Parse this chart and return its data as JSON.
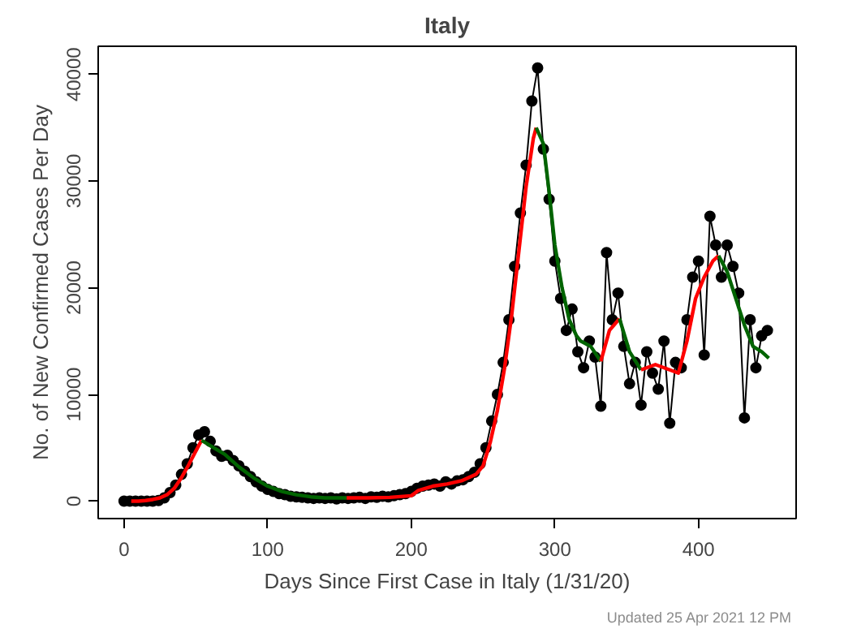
{
  "chart_data": {
    "type": "line",
    "title": "Italy",
    "xlabel": "Days Since First Case in Italy (1/31/20)",
    "ylabel": "No. of New Confirmed Cases Per Day",
    "annotations": [
      "Updated  25 Apr 2021 12 PM"
    ],
    "xlim": [
      -18,
      468
    ],
    "ylim": [
      -1640,
      42640
    ],
    "xticks": [
      0,
      100,
      200,
      300,
      400
    ],
    "yticks": [
      0,
      10000,
      20000,
      30000,
      40000
    ],
    "grid": false,
    "series": [
      {
        "color": "#000000",
        "marker": "circle",
        "line_style": "solid",
        "x": [
          0,
          4,
          8,
          12,
          16,
          20,
          24,
          28,
          32,
          36,
          40,
          44,
          48,
          52,
          56,
          60,
          64,
          68,
          72,
          76,
          80,
          84,
          88,
          92,
          96,
          100,
          104,
          108,
          112,
          116,
          120,
          124,
          128,
          132,
          136,
          140,
          144,
          148,
          152,
          156,
          160,
          164,
          168,
          172,
          176,
          180,
          184,
          188,
          192,
          196,
          200,
          204,
          208,
          212,
          216,
          220,
          224,
          228,
          232,
          236,
          240,
          244,
          248,
          252,
          256,
          260,
          264,
          268,
          272,
          276,
          280,
          284,
          288,
          292,
          296,
          300,
          304,
          308,
          312,
          316,
          320,
          324,
          328,
          332,
          336,
          340,
          344,
          348,
          352,
          356,
          360,
          364,
          368,
          372,
          376,
          380,
          384,
          388,
          392,
          396,
          400,
          404,
          408,
          412,
          416,
          420,
          424,
          428,
          432,
          436,
          440,
          444,
          448
        ],
        "values": [
          0,
          0,
          0,
          0,
          0,
          0,
          50,
          300,
          800,
          1500,
          2500,
          3500,
          5000,
          6200,
          6500,
          5600,
          4700,
          4200,
          4300,
          3800,
          3300,
          2800,
          2300,
          1800,
          1400,
          1100,
          900,
          700,
          600,
          450,
          400,
          350,
          300,
          250,
          300,
          250,
          300,
          200,
          300,
          250,
          300,
          350,
          250,
          400,
          350,
          450,
          400,
          500,
          600,
          700,
          900,
          1200,
          1400,
          1500,
          1600,
          1400,
          1800,
          1600,
          1900,
          2000,
          2300,
          2700,
          3500,
          5000,
          7500,
          10000,
          13000,
          17000,
          22000,
          27000,
          31500,
          37500,
          40600,
          33000,
          28300,
          22500,
          19000,
          16000,
          18000,
          14000,
          12500,
          15000,
          13500,
          8900,
          23300,
          17000,
          19500,
          14500,
          11000,
          13000,
          9000,
          14000,
          12000,
          10500,
          15000,
          7300,
          13000,
          12500,
          17000,
          21000,
          22500,
          13700,
          26700,
          24000,
          21000,
          24000,
          22000,
          19500,
          7800,
          17000,
          12500,
          15500,
          16000
        ]
      },
      {
        "color": "#ff0000",
        "marker": "none",
        "line_style": "solid",
        "x": [
          5,
          10,
          15,
          20,
          25,
          30,
          35,
          40,
          45,
          50,
          54
        ],
        "values": [
          0,
          0,
          50,
          150,
          300,
          600,
          1200,
          2200,
          3400,
          4700,
          5700
        ]
      },
      {
        "color": "#006400",
        "marker": "none",
        "line_style": "solid",
        "x": [
          54,
          60,
          70,
          80,
          90,
          100,
          110,
          120,
          130,
          140,
          150,
          155
        ],
        "values": [
          5700,
          5200,
          4400,
          3200,
          2200,
          1400,
          900,
          600,
          400,
          300,
          300,
          300
        ]
      },
      {
        "color": "#ff0000",
        "marker": "none",
        "line_style": "solid",
        "x": [
          155,
          170,
          185,
          200,
          205,
          215,
          225,
          235,
          245,
          250,
          255,
          260,
          265,
          270,
          275,
          280,
          285,
          287
        ],
        "values": [
          300,
          300,
          350,
          500,
          1000,
          1400,
          1600,
          1900,
          2500,
          3300,
          5500,
          8500,
          12500,
          17500,
          23500,
          29500,
          34000,
          35000
        ]
      },
      {
        "color": "#006400",
        "marker": "none",
        "line_style": "solid",
        "x": [
          287,
          292,
          296,
          300,
          305,
          310,
          315,
          318,
          325,
          332
        ],
        "values": [
          35000,
          33500,
          29000,
          24000,
          20000,
          17000,
          15500,
          15000,
          14500,
          13100
        ]
      },
      {
        "color": "#ff0000",
        "marker": "none",
        "line_style": "solid",
        "x": [
          332,
          338,
          345
        ],
        "values": [
          13100,
          16000,
          17100
        ]
      },
      {
        "color": "#006400",
        "marker": "none",
        "line_style": "solid",
        "x": [
          345,
          352,
          360
        ],
        "values": [
          17100,
          14000,
          12300
        ]
      },
      {
        "color": "#ff0000",
        "marker": "none",
        "line_style": "solid",
        "x": [
          360,
          370,
          380,
          386,
          392,
          398,
          404,
          410,
          414
        ],
        "values": [
          12300,
          12800,
          12300,
          12000,
          15000,
          19000,
          21000,
          22500,
          23000
        ]
      },
      {
        "color": "#006400",
        "marker": "none",
        "line_style": "solid",
        "x": [
          414,
          420,
          426,
          432,
          438,
          444,
          449
        ],
        "values": [
          23000,
          21500,
          19000,
          16500,
          14500,
          14000,
          13400
        ]
      }
    ]
  }
}
